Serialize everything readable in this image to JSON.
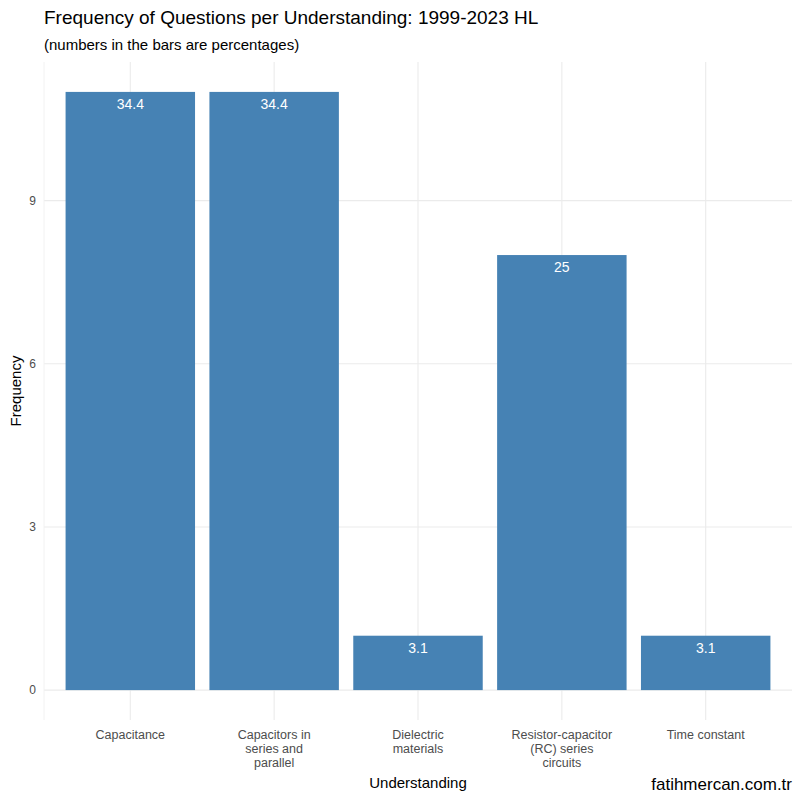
{
  "chart_data": {
    "type": "bar",
    "title": "Frequency of Questions per Understanding: 1999-2023 HL",
    "subtitle": "(numbers in the bars are percentages)",
    "x_label": "Understanding",
    "y_label": "Frequency",
    "caption": "fatihmercan.com.tr",
    "categories": [
      "Capacitance",
      "Capacitors in series and parallel",
      "Dielectric materials",
      "Resistor-capacitor (RC) series circuits",
      "Time constant"
    ],
    "values": [
      11,
      11,
      1,
      8,
      1
    ],
    "percentages": [
      34.4,
      34.4,
      3.1,
      25,
      3.1
    ],
    "color": "#4682b4",
    "ylim": [
      -0.55,
      11.55
    ],
    "yticks": [
      0,
      3,
      6,
      9
    ],
    "grid": true
  }
}
